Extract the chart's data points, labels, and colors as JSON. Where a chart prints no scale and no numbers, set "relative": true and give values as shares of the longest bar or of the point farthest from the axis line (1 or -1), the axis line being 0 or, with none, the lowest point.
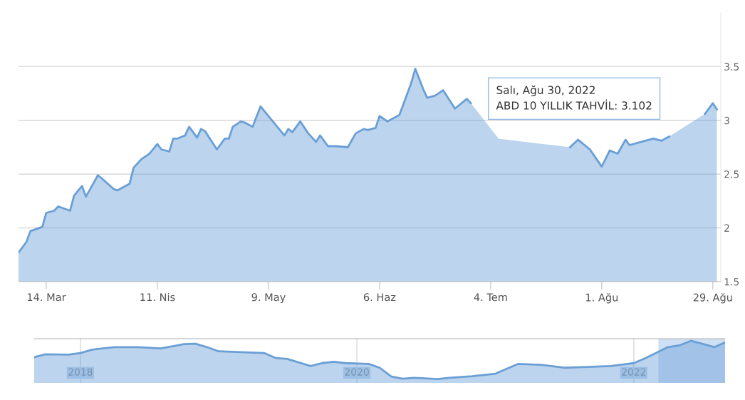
{
  "chart_data": [
    {
      "type": "area",
      "x": [
        "2022-03-07",
        "2022-03-09",
        "2022-03-10",
        "2022-03-13",
        "2022-03-14",
        "2022-03-16",
        "2022-03-17",
        "2022-03-20",
        "2022-03-21",
        "2022-03-23",
        "2022-03-24",
        "2022-03-27",
        "2022-03-28",
        "2022-03-31",
        "2022-04-01",
        "2022-04-03",
        "2022-04-04",
        "2022-04-05",
        "2022-04-07",
        "2022-04-09",
        "2022-04-11",
        "2022-04-12",
        "2022-04-14",
        "2022-04-15",
        "2022-04-16",
        "2022-04-18",
        "2022-04-19",
        "2022-04-21",
        "2022-04-22",
        "2022-04-23",
        "2022-04-26",
        "2022-04-28",
        "2022-04-29",
        "2022-04-30",
        "2022-05-02",
        "2022-05-03",
        "2022-05-05",
        "2022-05-07",
        "2022-05-09",
        "2022-05-13",
        "2022-05-14",
        "2022-05-15",
        "2022-05-17",
        "2022-05-19",
        "2022-05-21",
        "2022-05-22",
        "2022-05-24",
        "2022-05-26",
        "2022-05-29",
        "2022-05-31",
        "2022-06-02",
        "2022-06-03",
        "2022-06-05",
        "2022-06-06",
        "2022-06-08",
        "2022-06-11",
        "2022-06-12",
        "2022-06-14",
        "2022-06-15",
        "2022-06-17",
        "2022-06-18",
        "2022-06-20",
        "2022-06-22",
        "2022-06-25",
        "2022-06-28",
        "2022-06-29",
        "2022-07-03",
        "2022-07-06",
        "2022-07-20",
        "2022-07-24",
        "2022-07-26",
        "2022-07-29",
        "2022-08-01",
        "2022-08-03",
        "2022-08-05",
        "2022-08-07",
        "2022-08-08",
        "2022-08-11",
        "2022-08-14",
        "2022-08-16",
        "2022-08-18",
        "2022-08-22",
        "2022-08-27",
        "2022-08-29",
        "2022-08-30"
      ],
      "series": [
        {
          "color": "#6a9fd6",
          "values": [
            1.77,
            1.87,
            1.97,
            2.01,
            2.14,
            2.16,
            2.2,
            2.16,
            2.3,
            2.39,
            2.29,
            2.49,
            2.46,
            2.36,
            2.35,
            2.39,
            2.41,
            2.56,
            2.64,
            2.69,
            2.78,
            2.73,
            2.71,
            2.83,
            2.83,
            2.86,
            2.94,
            2.84,
            2.92,
            2.9,
            2.73,
            2.83,
            2.83,
            2.94,
            2.99,
            2.98,
            2.94,
            3.13,
            3.04,
            2.86,
            2.92,
            2.89,
            2.99,
            2.88,
            2.8,
            2.86,
            2.76,
            2.76,
            2.75,
            2.88,
            2.92,
            2.91,
            2.93,
            3.04,
            2.99,
            3.05,
            3.15,
            3.35,
            3.48,
            3.29,
            3.21,
            3.23,
            3.28,
            3.11,
            3.2,
            3.16,
            null,
            2.83,
            null,
            2.75,
            2.82,
            2.73,
            2.57,
            2.72,
            2.69,
            2.82,
            2.77,
            2.8,
            2.83,
            2.81,
            2.85,
            null,
            3.06,
            3.16,
            3.102
          ]
        }
      ],
      "xlim": [
        "2022-03-07",
        "2022-08-31"
      ],
      "xticks": [
        {
          "value": "2022-03-14",
          "label": "14. Mar"
        },
        {
          "value": "2022-04-11",
          "label": "11. Nis"
        },
        {
          "value": "2022-05-09",
          "label": "9. May"
        },
        {
          "value": "2022-06-06",
          "label": "6. Haz"
        },
        {
          "value": "2022-07-04",
          "label": "4. Tem"
        },
        {
          "value": "2022-08-01",
          "label": "1. Ağu"
        },
        {
          "value": "2022-08-29",
          "label": "29. Ağu"
        }
      ],
      "ylim": [
        1.5,
        4.0
      ],
      "yticks": [
        1.5,
        2,
        2.5,
        3,
        3.5
      ],
      "grid": "y",
      "annotations": [
        "Salı, Ağu 30, 2022\nABD 10 YILLIK TAHVİL: 3.102"
      ]
    },
    {
      "type": "area",
      "relative": true,
      "x": [
        "2017-09",
        "2017-10",
        "2017-12",
        "2018-01",
        "2018-02",
        "2018-03",
        "2018-04",
        "2018-06",
        "2018-08",
        "2018-10",
        "2018-11",
        "2018-12",
        "2019-01",
        "2019-03",
        "2019-05",
        "2019-06",
        "2019-07",
        "2019-09",
        "2019-10",
        "2019-11",
        "2019-12",
        "2020-02",
        "2020-03",
        "2020-04",
        "2020-05",
        "2020-06",
        "2020-08",
        "2020-09",
        "2020-11",
        "2021-01",
        "2021-03",
        "2021-05",
        "2021-07",
        "2021-09",
        "2021-11",
        "2022-01",
        "2022-02",
        "2022-03",
        "2022-04",
        "2022-05",
        "2022-06",
        "2022-08-02",
        "2022-08-30"
      ],
      "series": [
        {
          "color": "#6a9fd6",
          "values": [
            0.61,
            0.68,
            0.67,
            0.71,
            0.79,
            0.82,
            0.85,
            0.85,
            0.82,
            0.92,
            0.93,
            0.85,
            0.75,
            0.73,
            0.71,
            0.59,
            0.57,
            0.4,
            0.47,
            0.5,
            0.47,
            0.45,
            0.36,
            0.15,
            0.1,
            0.12,
            0.09,
            0.12,
            0.16,
            0.22,
            0.45,
            0.43,
            0.36,
            0.38,
            0.4,
            0.47,
            0.59,
            0.71,
            0.85,
            0.89,
            1.0,
            0.85,
            0.96
          ]
        }
      ],
      "xlim": [
        "2017-09",
        "2022-08-30"
      ],
      "xticks": [
        "2018",
        "2020",
        "2022"
      ],
      "grid": "x",
      "tick_labels": "x",
      "bands": [
        {
          "axis": "x",
          "from": "2022-03-07",
          "to": "2022-08-30",
          "color": "#cfe0f5"
        }
      ]
    }
  ]
}
